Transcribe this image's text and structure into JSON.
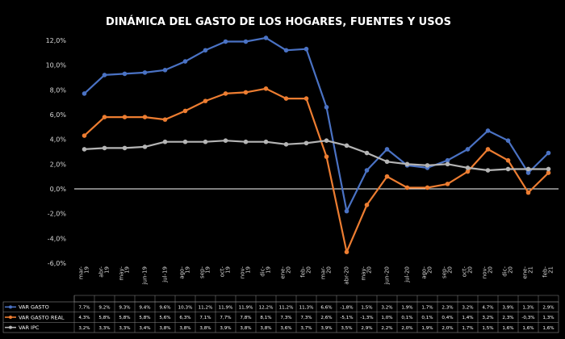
{
  "chart_data": {
    "type": "line",
    "title": "DINÁMICA DEL GASTO DE LOS HOGARES, FUENTES Y USOS",
    "ylim": [
      -6,
      12
    ],
    "yticks": [
      "12,0%",
      "10,0%",
      "8,0%",
      "6,0%",
      "4,0%",
      "2,0%",
      "0,0%",
      "-2,0%",
      "-4,0%",
      "-6,0%"
    ],
    "categories": [
      "mar-19",
      "abr-19",
      "may-19",
      "jun-19",
      "jul-19",
      "ago-19",
      "sep-19",
      "oct-19",
      "nov-19",
      "dic-19",
      "ene-20",
      "feb-20",
      "mar-20",
      "abr-20",
      "may-20",
      "jun-20",
      "jul-20",
      "ago-20",
      "sep-20",
      "oct-20",
      "nov-20",
      "dic-20",
      "ene-21",
      "feb-21"
    ],
    "date_labels": [
      "mar-\n19",
      "abr-\n19",
      "may-\n19",
      "jun-19",
      "jul-19",
      "ago-\n19",
      "sep-\n19",
      "oct-\n19",
      "nov-\n19",
      "dic-\n19",
      "ene-\n20",
      "feb-\n20",
      "mar-\n20",
      "abr-20",
      "may-\n20",
      "jun-20",
      "jul-20",
      "ago-\n20",
      "sep-\n20",
      "oct-\n20",
      "nov-\n20",
      "dic-\n20",
      "ene-\n21",
      "feb-\n21"
    ],
    "series": [
      {
        "name": "VAR GASTO",
        "color": "#4a72c4",
        "values": [
          7.7,
          9.2,
          9.3,
          9.4,
          9.6,
          10.3,
          11.2,
          11.9,
          11.9,
          12.2,
          11.2,
          11.3,
          6.6,
          -1.8,
          1.5,
          3.2,
          1.9,
          1.7,
          2.3,
          3.2,
          4.7,
          3.9,
          1.3,
          2.9
        ],
        "labels": [
          "7,7%",
          "9,2%",
          "9,3%",
          "9,4%",
          "9,6%",
          "10,3%",
          "11,2%",
          "11,9%",
          "11,9%",
          "12,2%",
          "11,2%",
          "11,3%",
          "6,6%",
          "-1,8%",
          "1,5%",
          "3,2%",
          "1,9%",
          "1,7%",
          "2,3%",
          "3,2%",
          "4,7%",
          "3,9%",
          "1,3%",
          "2,9%"
        ]
      },
      {
        "name": "VAR GASTO REAL",
        "color": "#ed7d31",
        "values": [
          4.3,
          5.8,
          5.8,
          5.8,
          5.6,
          6.3,
          7.1,
          7.7,
          7.8,
          8.1,
          7.3,
          7.3,
          2.6,
          -5.1,
          -1.3,
          1.0,
          0.1,
          0.1,
          0.4,
          1.4,
          3.2,
          2.3,
          -0.3,
          1.3
        ],
        "labels": [
          "4,3%",
          "5,8%",
          "5,8%",
          "5,8%",
          "5,6%",
          "6,3%",
          "7,1%",
          "7,7%",
          "7,8%",
          "8,1%",
          "7,3%",
          "7,3%",
          "2,6%",
          "-5,1%",
          "-1,3%",
          "1,0%",
          "0,1%",
          "0,1%",
          "0,4%",
          "1,4%",
          "3,2%",
          "2,3%",
          "-0,3%",
          "1,3%"
        ]
      },
      {
        "name": "VAR IPC",
        "color": "#b5b5b5",
        "values": [
          3.2,
          3.3,
          3.3,
          3.4,
          3.8,
          3.8,
          3.8,
          3.9,
          3.8,
          3.8,
          3.6,
          3.7,
          3.9,
          3.5,
          2.9,
          2.2,
          2.0,
          1.9,
          2.0,
          1.7,
          1.5,
          1.6,
          1.6,
          1.6
        ],
        "labels": [
          "3,2%",
          "3,3%",
          "3,3%",
          "3,4%",
          "3,8%",
          "3,8%",
          "3,8%",
          "3,9%",
          "3,8%",
          "3,8%",
          "3,6%",
          "3,7%",
          "3,9%",
          "3,5%",
          "2,9%",
          "2,2%",
          "2,0%",
          "1,9%",
          "2,0%",
          "1,7%",
          "1,5%",
          "1,6%",
          "1,6%",
          "1,6%"
        ]
      }
    ]
  }
}
